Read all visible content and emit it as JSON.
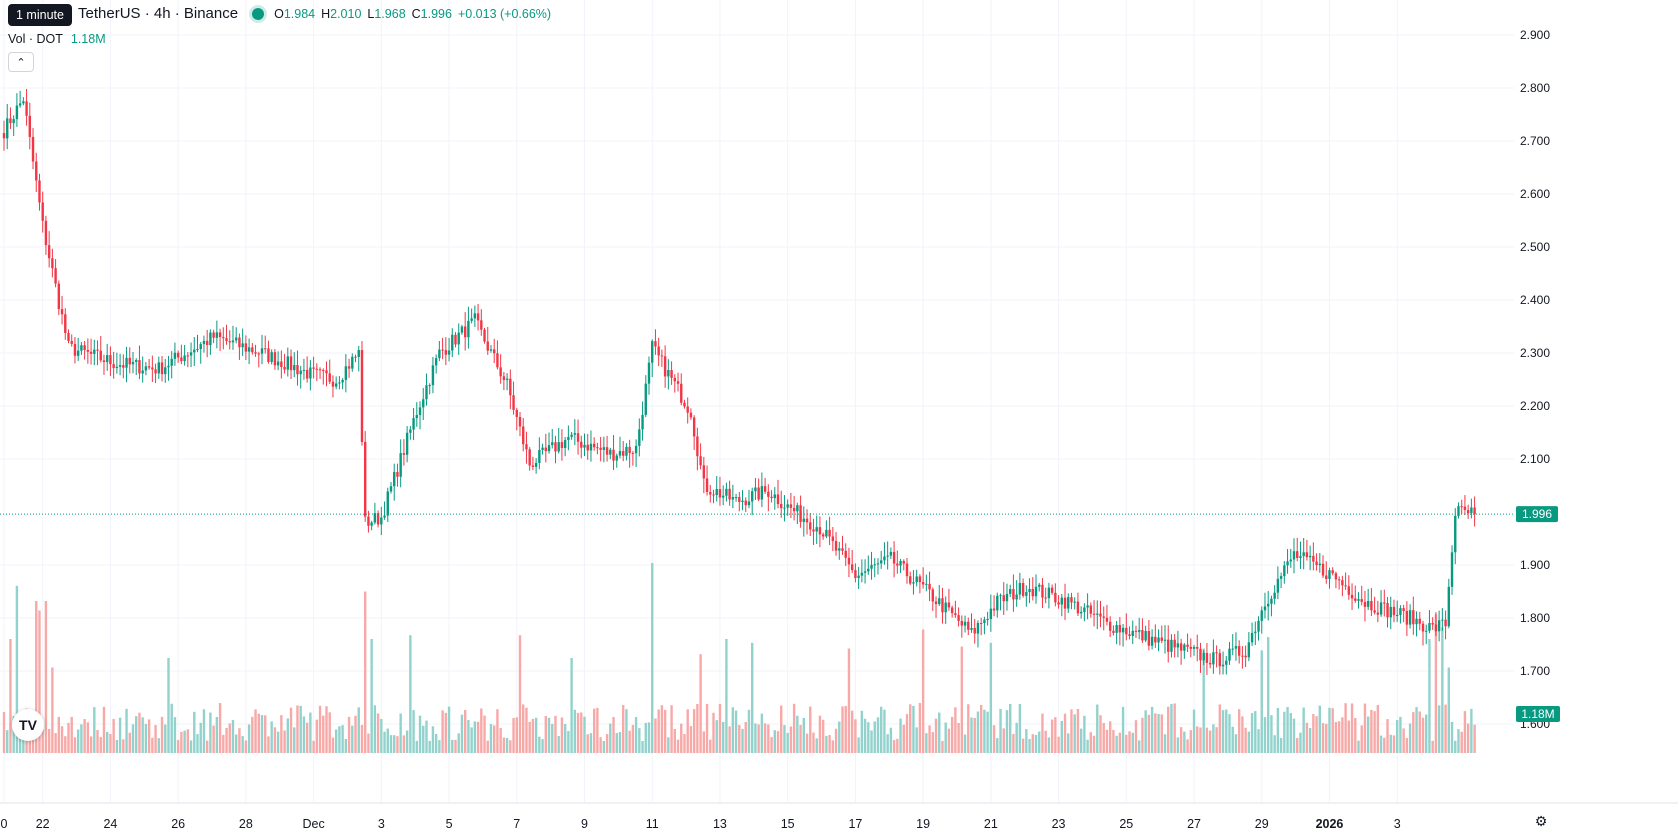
{
  "tooltip": "1 minute",
  "legend": {
    "symbol": "TetherUS · 4h · Binance",
    "open_label": "O",
    "open": "1.984",
    "high_label": "H",
    "high": "2.010",
    "low_label": "L",
    "low": "1.968",
    "close_label": "C",
    "close": "1.996",
    "change": "+0.013 (+0.66%)"
  },
  "volume_legend": {
    "label": "Vol · DOT",
    "value": "1.18M"
  },
  "icons": {
    "collapse": "chevron-up-icon",
    "logo": "tradingview-logo",
    "settings": "gear-icon"
  },
  "colors": {
    "up": "#089981",
    "down": "#F23645",
    "up_volume": "#92D2CC",
    "down_volume": "#F7A9A7"
  },
  "chart_data": {
    "type": "candlestick",
    "interval": "4h",
    "y_axis": {
      "ticks": [
        "2.900",
        "2.800",
        "2.700",
        "2.600",
        "2.500",
        "2.400",
        "2.300",
        "2.200",
        "2.100",
        "1.900",
        "1.800",
        "1.700",
        "1.600"
      ],
      "range": [
        1.58,
        2.94
      ],
      "last_price_label": "1.996",
      "volume_label": "1.18M"
    },
    "x_axis": {
      "ticks": [
        "0",
        "22",
        "24",
        "26",
        "28",
        "Dec",
        "3",
        "5",
        "7",
        "9",
        "11",
        "13",
        "15",
        "17",
        "19",
        "21",
        "23",
        "25",
        "27",
        "29",
        "2026",
        "3"
      ]
    },
    "last_price": 1.996,
    "last_volume": "1.18M",
    "grid": true,
    "anchors": [
      [
        0,
        2.72
      ],
      [
        6,
        2.78
      ],
      [
        8,
        2.7
      ],
      [
        12,
        2.54
      ],
      [
        20,
        2.31
      ],
      [
        35,
        2.28
      ],
      [
        48,
        2.27
      ],
      [
        65,
        2.33
      ],
      [
        80,
        2.3
      ],
      [
        95,
        2.26
      ],
      [
        103,
        2.25
      ],
      [
        110,
        2.3
      ],
      [
        112,
        1.98
      ],
      [
        117,
        1.99
      ],
      [
        128,
        2.19
      ],
      [
        135,
        2.3
      ],
      [
        146,
        2.36
      ],
      [
        156,
        2.24
      ],
      [
        163,
        2.09
      ],
      [
        175,
        2.14
      ],
      [
        188,
        2.11
      ],
      [
        196,
        2.12
      ],
      [
        201,
        2.31
      ],
      [
        213,
        2.19
      ],
      [
        217,
        2.05
      ],
      [
        227,
        2.02
      ],
      [
        237,
        2.04
      ],
      [
        243,
        2.01
      ],
      [
        253,
        1.97
      ],
      [
        264,
        1.88
      ],
      [
        275,
        1.91
      ],
      [
        288,
        1.84
      ],
      [
        300,
        1.77
      ],
      [
        308,
        1.83
      ],
      [
        317,
        1.86
      ],
      [
        330,
        1.83
      ],
      [
        336,
        1.81
      ],
      [
        342,
        1.79
      ],
      [
        360,
        1.75
      ],
      [
        376,
        1.72
      ],
      [
        385,
        1.74
      ],
      [
        391,
        1.83
      ],
      [
        400,
        1.92
      ],
      [
        412,
        1.88
      ],
      [
        422,
        1.83
      ],
      [
        436,
        1.8
      ],
      [
        443,
        1.78
      ],
      [
        447,
        1.79
      ],
      [
        450,
        2.0
      ],
      [
        456,
        1.997
      ]
    ],
    "volume_spikes": [
      [
        2,
        0.6
      ],
      [
        4,
        0.88
      ],
      [
        10,
        0.8
      ],
      [
        11,
        0.75
      ],
      [
        13,
        0.8
      ],
      [
        15,
        0.45
      ],
      [
        51,
        0.5
      ],
      [
        112,
        0.85
      ],
      [
        114,
        0.6
      ],
      [
        126,
        0.62
      ],
      [
        160,
        0.62
      ],
      [
        176,
        0.5
      ],
      [
        201,
        1.0
      ],
      [
        216,
        0.52
      ],
      [
        224,
        0.6
      ],
      [
        232,
        0.58
      ],
      [
        262,
        0.55
      ],
      [
        285,
        0.65
      ],
      [
        297,
        0.56
      ],
      [
        306,
        0.58
      ],
      [
        372,
        0.55
      ],
      [
        390,
        0.54
      ],
      [
        392,
        0.61
      ],
      [
        442,
        0.6
      ],
      [
        444,
        0.73
      ],
      [
        446,
        0.66
      ],
      [
        448,
        0.45
      ]
    ]
  }
}
